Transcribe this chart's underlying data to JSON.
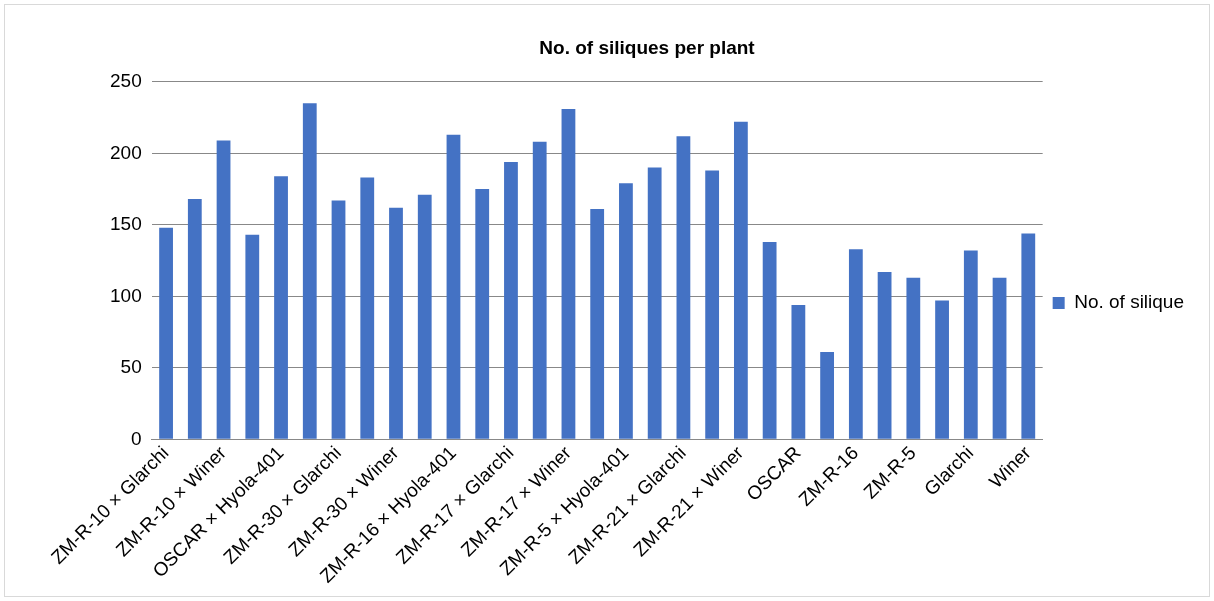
{
  "chart_data": {
    "type": "bar",
    "title": "No. of siliques per plant",
    "categories": [
      "ZM-R-10 × Glarchi",
      null,
      "ZM-R-10 × Winer",
      null,
      "OSCAR × Hyola-401",
      null,
      "ZM-R-30 × Glarchi",
      null,
      "ZM-R-30 × Winer",
      null,
      "ZM-R-16 × Hyola-401",
      null,
      "ZM-R-17 × Glarchi",
      null,
      "ZM-R-17 × Winer",
      null,
      "ZM-R-5 × Hyola-401",
      null,
      "ZM-R-21 × Glarchi",
      null,
      "ZM-R-21 × Winer",
      null,
      "OSCAR",
      null,
      "ZM-R-16",
      null,
      "ZM-R-5",
      null,
      "Glarchi",
      null,
      "Winer"
    ],
    "series": [
      {
        "name": "No. of silique",
        "color": "#4472c4",
        "values": [
          148,
          168,
          209,
          143,
          184,
          235,
          167,
          183,
          162,
          171,
          213,
          175,
          194,
          208,
          231,
          161,
          179,
          190,
          212,
          188,
          222,
          138,
          94,
          61,
          133,
          117,
          113,
          97,
          132,
          113,
          144
        ]
      }
    ],
    "ylim": [
      0,
      250
    ],
    "yticks": [
      0,
      50,
      100,
      150,
      200,
      250
    ],
    "grid": "y",
    "legend": "right"
  }
}
